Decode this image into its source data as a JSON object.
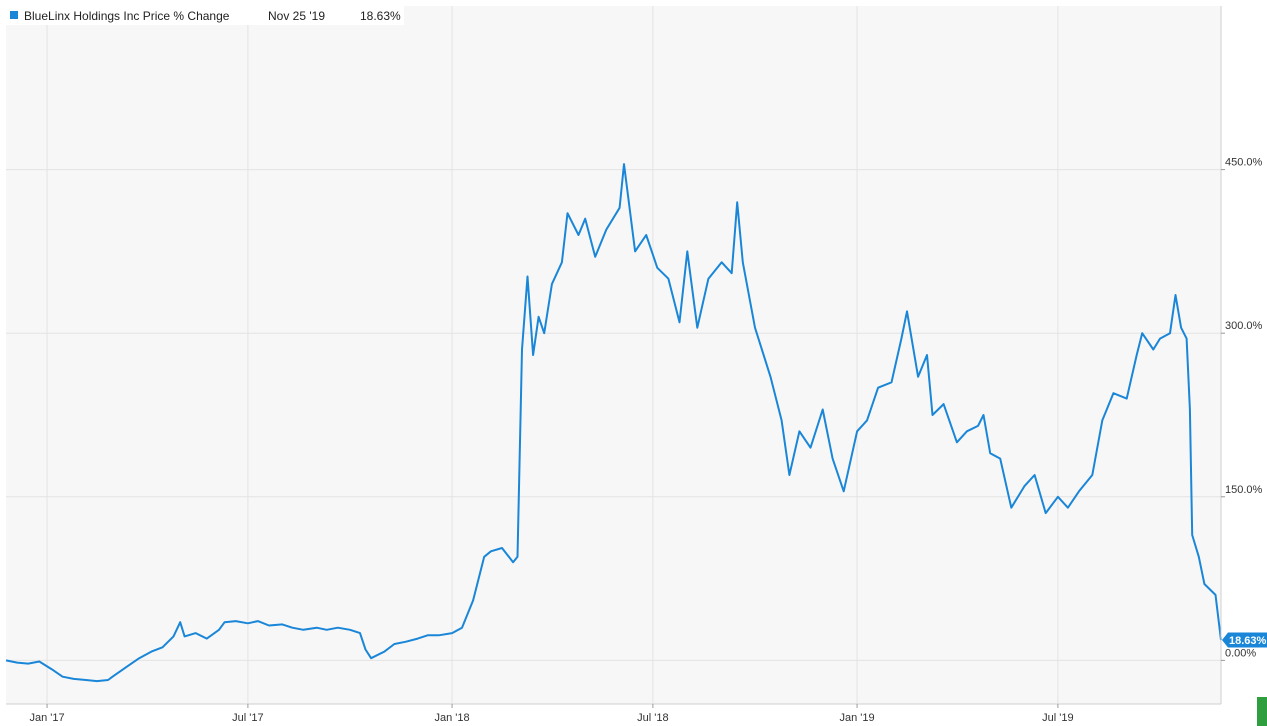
{
  "colors": {
    "series": "#1a86d8",
    "plot_background": "#f7f7f7",
    "grid": "#e3e3e3",
    "axis_text": "#333333",
    "corner_marker": "#2e9e3e"
  },
  "legend": {
    "icon": "square-marker-icon",
    "series_name": "BlueLinx Holdings Inc Price % Change",
    "date": "Nov 25 '19",
    "value": "18.63%"
  },
  "last_value_label": "18.63%",
  "chart_data": {
    "type": "line",
    "title": "",
    "xlabel": "",
    "ylabel": "",
    "x_ticks": [
      {
        "label": "Jan '17",
        "date": "2017-01-01"
      },
      {
        "label": "Jul '17",
        "date": "2017-07-01"
      },
      {
        "label": "Jan '18",
        "date": "2018-01-01"
      },
      {
        "label": "Jul '18",
        "date": "2018-07-01"
      },
      {
        "label": "Jan '19",
        "date": "2019-01-01"
      },
      {
        "label": "Jul '19",
        "date": "2019-07-01"
      }
    ],
    "y_ticks": [
      {
        "label": "450.0%",
        "value": 450
      },
      {
        "label": "300.0%",
        "value": 300
      },
      {
        "label": "150.0%",
        "value": 150
      },
      {
        "label": "0.00%",
        "value": 0
      }
    ],
    "xlim": [
      "2016-11-25",
      "2019-11-25"
    ],
    "ylim": [
      -40,
      600
    ],
    "grid": true,
    "legend_position": "top-left",
    "y_axis_position": "right",
    "series": [
      {
        "name": "BlueLinx Holdings Inc Price % Change",
        "points": [
          [
            "2016-11-25",
            0
          ],
          [
            "2016-12-05",
            -2
          ],
          [
            "2016-12-15",
            -3
          ],
          [
            "2016-12-25",
            -1
          ],
          [
            "2017-01-05",
            -8
          ],
          [
            "2017-01-15",
            -15
          ],
          [
            "2017-01-25",
            -17
          ],
          [
            "2017-02-05",
            -18
          ],
          [
            "2017-02-15",
            -19
          ],
          [
            "2017-02-25",
            -18
          ],
          [
            "2017-03-01",
            -15
          ],
          [
            "2017-03-15",
            -5
          ],
          [
            "2017-03-25",
            2
          ],
          [
            "2017-04-05",
            8
          ],
          [
            "2017-04-15",
            12
          ],
          [
            "2017-04-25",
            22
          ],
          [
            "2017-05-01",
            35
          ],
          [
            "2017-05-05",
            22
          ],
          [
            "2017-05-15",
            25
          ],
          [
            "2017-05-25",
            20
          ],
          [
            "2017-06-05",
            28
          ],
          [
            "2017-06-10",
            35
          ],
          [
            "2017-06-20",
            36
          ],
          [
            "2017-07-01",
            34
          ],
          [
            "2017-07-10",
            36
          ],
          [
            "2017-07-20",
            32
          ],
          [
            "2017-08-01",
            33
          ],
          [
            "2017-08-10",
            30
          ],
          [
            "2017-08-20",
            28
          ],
          [
            "2017-09-01",
            30
          ],
          [
            "2017-09-10",
            28
          ],
          [
            "2017-09-20",
            30
          ],
          [
            "2017-10-01",
            28
          ],
          [
            "2017-10-10",
            25
          ],
          [
            "2017-10-15",
            10
          ],
          [
            "2017-10-20",
            2
          ],
          [
            "2017-11-01",
            8
          ],
          [
            "2017-11-10",
            15
          ],
          [
            "2017-11-20",
            17
          ],
          [
            "2017-12-01",
            20
          ],
          [
            "2017-12-10",
            23
          ],
          [
            "2017-12-20",
            23
          ],
          [
            "2018-01-01",
            25
          ],
          [
            "2018-01-10",
            30
          ],
          [
            "2018-01-20",
            55
          ],
          [
            "2018-01-30",
            95
          ],
          [
            "2018-02-05",
            100
          ],
          [
            "2018-02-15",
            103
          ],
          [
            "2018-02-25",
            90
          ],
          [
            "2018-03-01",
            95
          ],
          [
            "2018-03-05",
            285
          ],
          [
            "2018-03-10",
            352
          ],
          [
            "2018-03-15",
            280
          ],
          [
            "2018-03-20",
            315
          ],
          [
            "2018-03-25",
            300
          ],
          [
            "2018-04-01",
            345
          ],
          [
            "2018-04-10",
            365
          ],
          [
            "2018-04-15",
            410
          ],
          [
            "2018-04-25",
            390
          ],
          [
            "2018-05-01",
            405
          ],
          [
            "2018-05-10",
            370
          ],
          [
            "2018-05-20",
            395
          ],
          [
            "2018-06-01",
            415
          ],
          [
            "2018-06-05",
            455
          ],
          [
            "2018-06-15",
            375
          ],
          [
            "2018-06-25",
            390
          ],
          [
            "2018-07-05",
            360
          ],
          [
            "2018-07-15",
            350
          ],
          [
            "2018-07-25",
            310
          ],
          [
            "2018-08-01",
            375
          ],
          [
            "2018-08-10",
            305
          ],
          [
            "2018-08-20",
            350
          ],
          [
            "2018-09-01",
            365
          ],
          [
            "2018-09-10",
            355
          ],
          [
            "2018-09-15",
            420
          ],
          [
            "2018-09-20",
            365
          ],
          [
            "2018-10-01",
            305
          ],
          [
            "2018-10-15",
            260
          ],
          [
            "2018-10-25",
            220
          ],
          [
            "2018-11-01",
            170
          ],
          [
            "2018-11-10",
            210
          ],
          [
            "2018-11-20",
            195
          ],
          [
            "2018-12-01",
            230
          ],
          [
            "2018-12-10",
            185
          ],
          [
            "2018-12-20",
            155
          ],
          [
            "2019-01-01",
            210
          ],
          [
            "2019-01-10",
            220
          ],
          [
            "2019-01-20",
            250
          ],
          [
            "2019-02-01",
            255
          ],
          [
            "2019-02-10",
            295
          ],
          [
            "2019-02-15",
            320
          ],
          [
            "2019-02-25",
            260
          ],
          [
            "2019-03-05",
            280
          ],
          [
            "2019-03-10",
            225
          ],
          [
            "2019-03-20",
            235
          ],
          [
            "2019-04-01",
            200
          ],
          [
            "2019-04-10",
            210
          ],
          [
            "2019-04-20",
            215
          ],
          [
            "2019-04-25",
            225
          ],
          [
            "2019-05-01",
            190
          ],
          [
            "2019-05-10",
            185
          ],
          [
            "2019-05-20",
            140
          ],
          [
            "2019-06-01",
            160
          ],
          [
            "2019-06-10",
            170
          ],
          [
            "2019-06-20",
            135
          ],
          [
            "2019-07-01",
            150
          ],
          [
            "2019-07-10",
            140
          ],
          [
            "2019-07-20",
            155
          ],
          [
            "2019-08-01",
            170
          ],
          [
            "2019-08-10",
            220
          ],
          [
            "2019-08-20",
            245
          ],
          [
            "2019-09-01",
            240
          ],
          [
            "2019-09-10",
            280
          ],
          [
            "2019-09-15",
            300
          ],
          [
            "2019-09-25",
            285
          ],
          [
            "2019-10-01",
            295
          ],
          [
            "2019-10-10",
            300
          ],
          [
            "2019-10-15",
            335
          ],
          [
            "2019-10-20",
            305
          ],
          [
            "2019-10-25",
            295
          ],
          [
            "2019-10-28",
            230
          ],
          [
            "2019-10-30",
            115
          ],
          [
            "2019-11-05",
            95
          ],
          [
            "2019-11-10",
            70
          ],
          [
            "2019-11-20",
            60
          ],
          [
            "2019-11-25",
            18.63
          ]
        ]
      }
    ]
  }
}
